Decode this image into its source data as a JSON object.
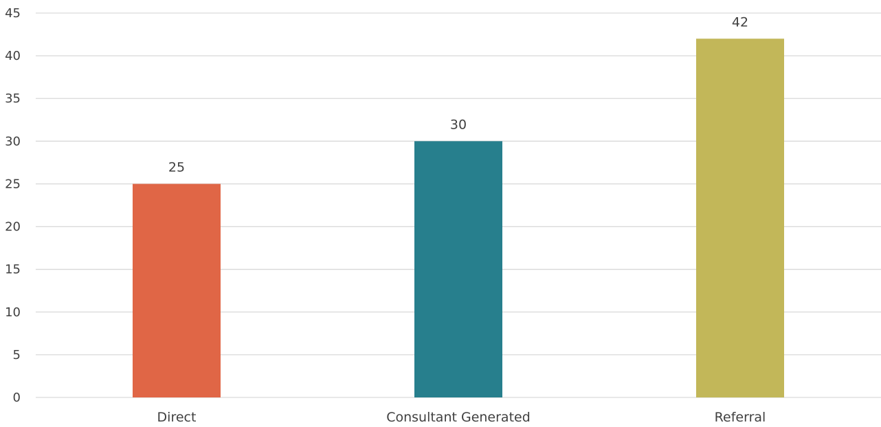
{
  "chart_data": {
    "type": "bar",
    "categories": [
      "Direct",
      "Consultant Generated",
      "Referral"
    ],
    "values": [
      25,
      30,
      42
    ],
    "value_labels": [
      "25",
      "30",
      "42"
    ],
    "colors": [
      "#e06646",
      "#277f8d",
      "#c2b759"
    ],
    "ylim": [
      0,
      45
    ],
    "yticks": [
      "0",
      "5",
      "10",
      "15",
      "20",
      "25",
      "30",
      "35",
      "40",
      "45"
    ],
    "grid": true,
    "legend": "none"
  }
}
